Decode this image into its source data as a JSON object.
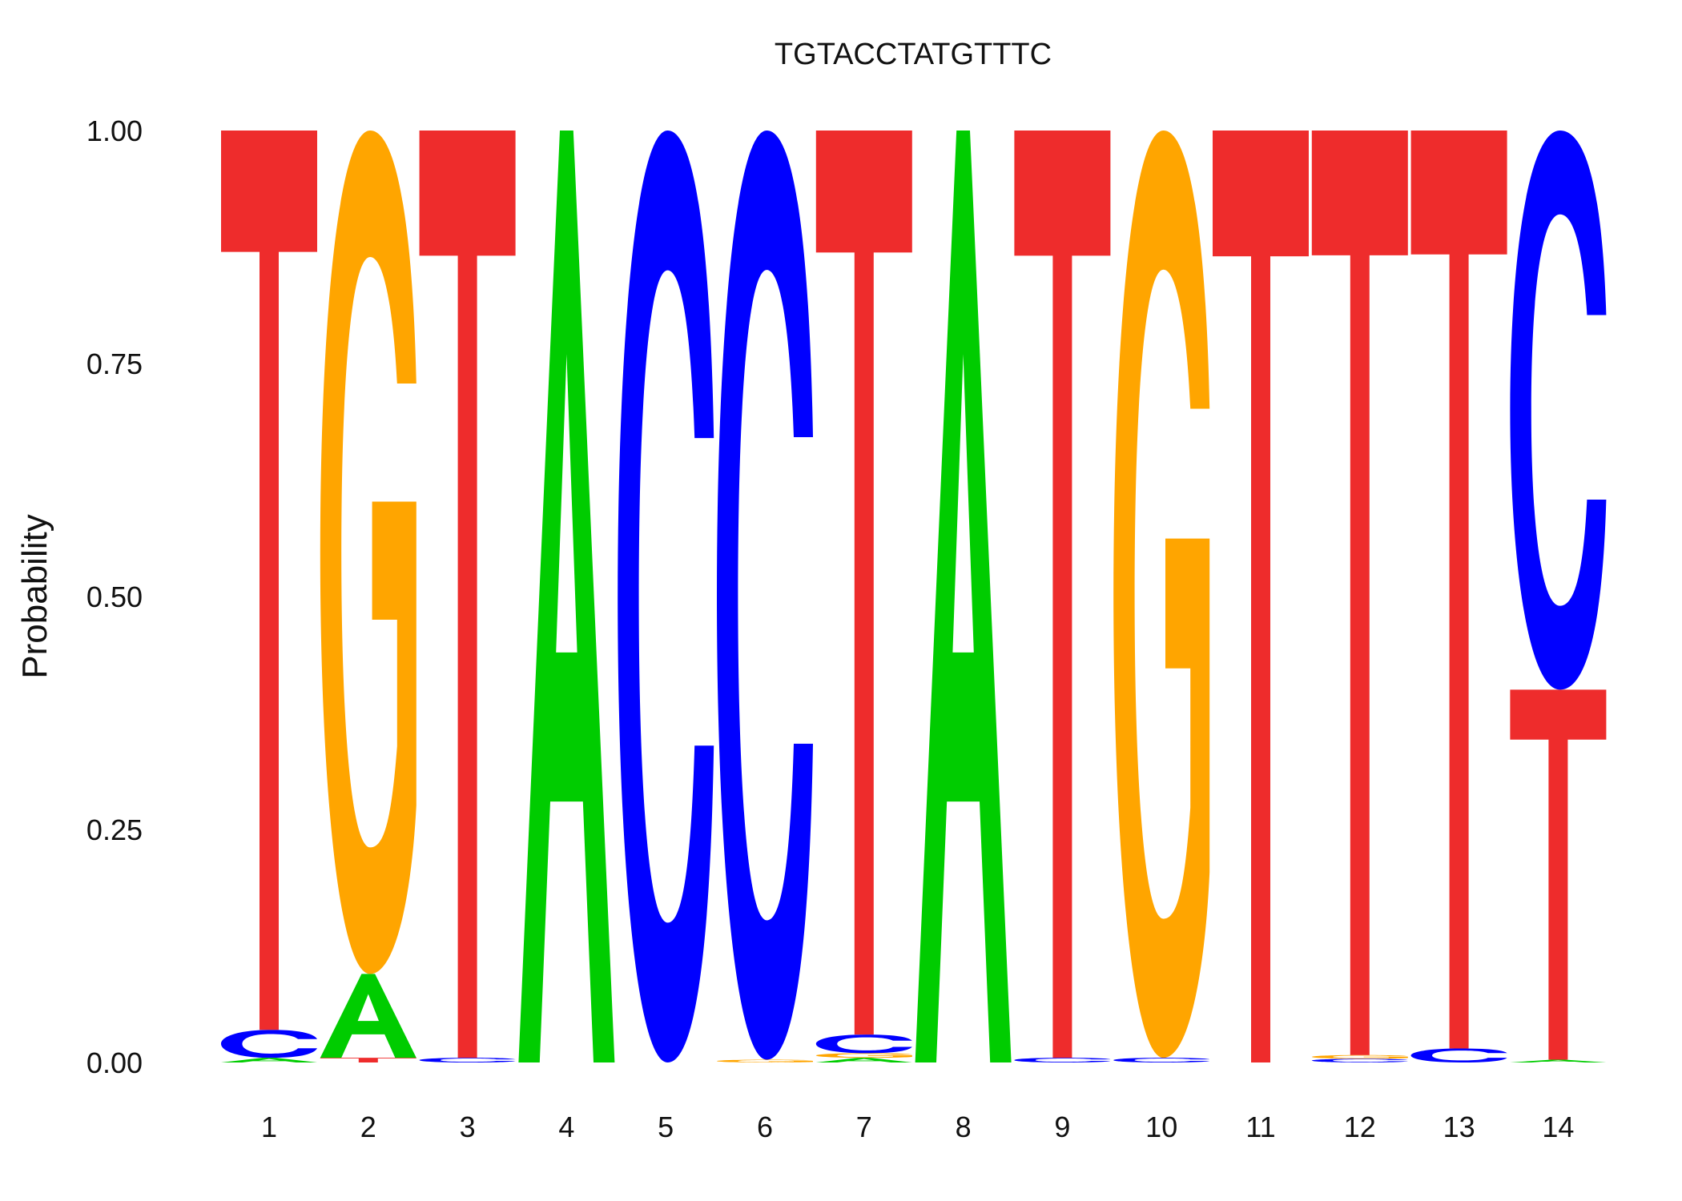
{
  "chart_data": {
    "type": "sequence-logo",
    "title": "TGTACCTATGTTTC",
    "ylabel": "Probability",
    "xlabel": "",
    "ylim": [
      0,
      1
    ],
    "yticks": [
      "0.00",
      "0.25",
      "0.50",
      "0.75",
      "1.00"
    ],
    "positions": [
      "1",
      "2",
      "3",
      "4",
      "5",
      "6",
      "7",
      "8",
      "9",
      "10",
      "11",
      "12",
      "13",
      "14"
    ],
    "colors": {
      "A": "#00cc00",
      "C": "#0000ff",
      "G": "#ffa500",
      "T": "#ee2c2c"
    },
    "columns": [
      {
        "A": 0.005,
        "C": 0.03,
        "G": 0.0,
        "T": 0.965
      },
      {
        "A": 0.09,
        "C": 0.0,
        "G": 0.905,
        "T": 0.005
      },
      {
        "A": 0.0,
        "C": 0.005,
        "G": 0.0,
        "T": 0.995
      },
      {
        "A": 1.0,
        "C": 0.0,
        "G": 0.0,
        "T": 0.0
      },
      {
        "A": 0.0,
        "C": 1.0,
        "G": 0.0,
        "T": 0.0
      },
      {
        "A": 0.0,
        "C": 0.997,
        "G": 0.003,
        "T": 0.0
      },
      {
        "A": 0.005,
        "C": 0.02,
        "G": 0.005,
        "T": 0.97
      },
      {
        "A": 1.0,
        "C": 0.0,
        "G": 0.0,
        "T": 0.0
      },
      {
        "A": 0.0,
        "C": 0.005,
        "G": 0.0,
        "T": 0.995
      },
      {
        "A": 0.0,
        "C": 0.005,
        "G": 0.995,
        "T": 0.0
      },
      {
        "A": 0.0,
        "C": 0.0,
        "G": 0.0,
        "T": 1.0
      },
      {
        "A": 0.0,
        "C": 0.004,
        "G": 0.004,
        "T": 0.992
      },
      {
        "A": 0.0,
        "C": 0.015,
        "G": 0.0,
        "T": 0.985
      },
      {
        "A": 0.003,
        "C": 0.6,
        "G": 0.0,
        "T": 0.397
      }
    ]
  }
}
